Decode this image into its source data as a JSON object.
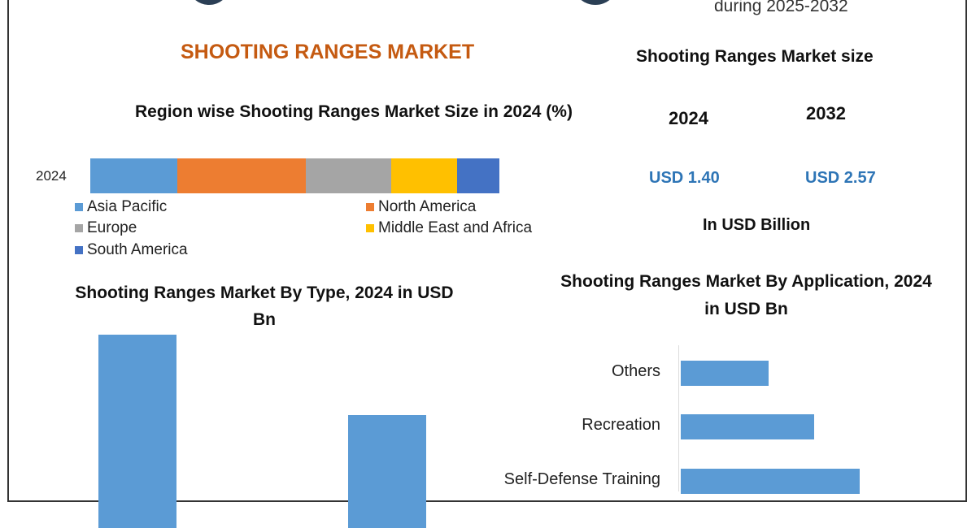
{
  "header": {
    "period_text": "during 2025-2032",
    "main_title": "SHOOTING RANGES MARKET"
  },
  "market_size": {
    "title": "Shooting Ranges Market size",
    "years": [
      "2024",
      "2032"
    ],
    "values": [
      "USD 1.40",
      "USD 2.57"
    ],
    "unit": "In USD Billion",
    "value_color": "#2e75b6"
  },
  "chart_data": [
    {
      "type": "bar",
      "orientation": "horizontal-stacked",
      "title": "Region wise Shooting Ranges Market Size in 2024 (%)",
      "categories": [
        "2024"
      ],
      "series": [
        {
          "name": "Asia Pacific",
          "values": [
            21.3
          ],
          "color": "#5b9bd5"
        },
        {
          "name": "North America",
          "values": [
            31.4
          ],
          "color": "#ed7d31"
        },
        {
          "name": "Europe",
          "values": [
            20.9
          ],
          "color": "#a5a5a5"
        },
        {
          "name": "Middle East and Africa",
          "values": [
            16.1
          ],
          "color": "#ffc000"
        },
        {
          "name": "South America",
          "values": [
            10.3
          ],
          "color": "#4472c4"
        }
      ],
      "xlim": [
        0,
        100
      ],
      "legend": "bottom",
      "grid": false
    },
    {
      "type": "bar",
      "title": "Shooting Ranges Market By Type, 2024 in USD Bn",
      "values": [
        0.6,
        0.35
      ],
      "color": "#5b9bd5",
      "grid": false
    },
    {
      "type": "bar",
      "orientation": "horizontal",
      "title": "Shooting Ranges Market By Application, 2024 in USD Bn",
      "categories": [
        "Others",
        "Recreation",
        "Self-Defense Training"
      ],
      "values": [
        0.27,
        0.41,
        0.55
      ],
      "color": "#5b9bd5",
      "grid": false
    }
  ]
}
